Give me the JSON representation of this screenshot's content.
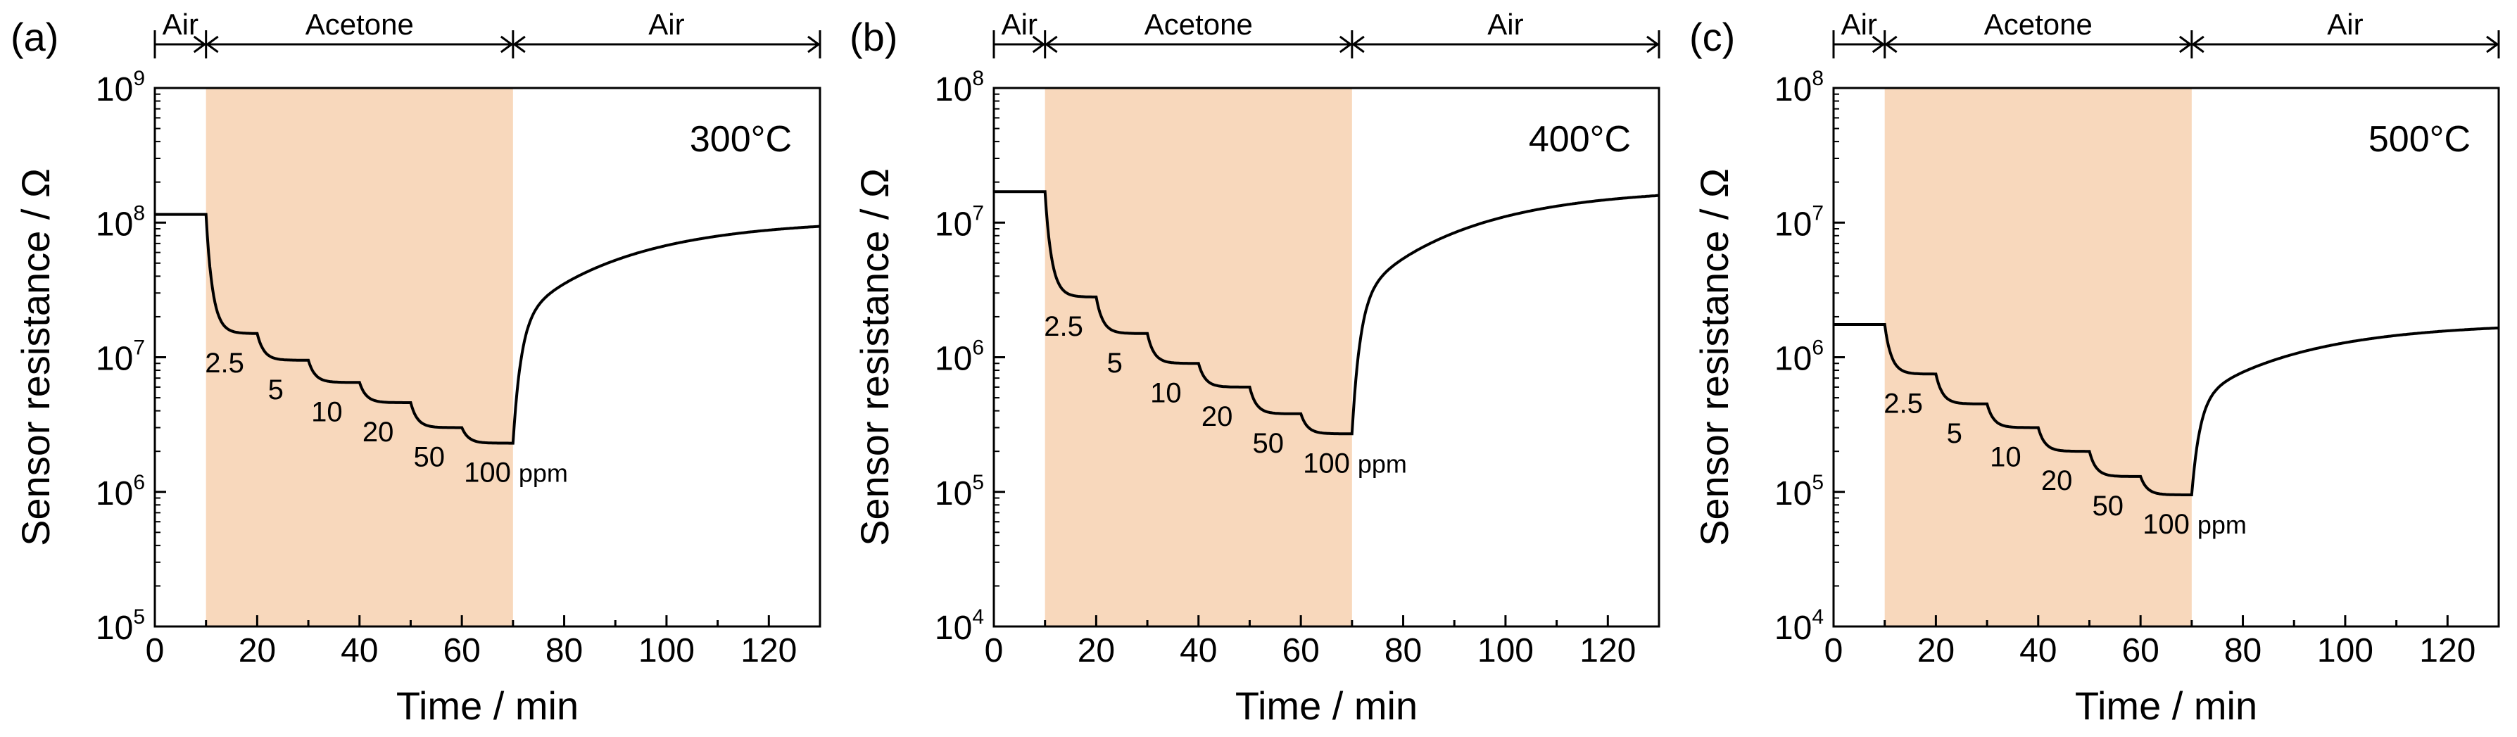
{
  "chart_data": [
    {
      "type": "line",
      "panel": "(a)",
      "temperature": "300°C",
      "xlabel": "Time / min",
      "ylabel": "Sensor resistance / Ω",
      "xlim": [
        0,
        130
      ],
      "xticks": [
        0,
        20,
        40,
        60,
        80,
        100,
        120
      ],
      "ylim_exp": [
        5,
        9
      ],
      "yticks": [
        {
          "base": "10",
          "exp": "5"
        },
        {
          "base": "10",
          "exp": "6"
        },
        {
          "base": "10",
          "exp": "7"
        },
        {
          "base": "10",
          "exp": "8"
        },
        {
          "base": "10",
          "exp": "9"
        }
      ],
      "phases": [
        {
          "label": "Air",
          "start": 0,
          "end": 10
        },
        {
          "label": "Acetone",
          "start": 10,
          "end": 70
        },
        {
          "label": "Air",
          "start": 70,
          "end": 130
        }
      ],
      "exposure_window": [
        10,
        70
      ],
      "baseline": 115000000.0,
      "steps": [
        {
          "label": "2.5",
          "start": 10,
          "end": 20,
          "value": 15000000.0
        },
        {
          "label": "5",
          "start": 20,
          "end": 30,
          "value": 9500000.0
        },
        {
          "label": "10",
          "start": 30,
          "end": 40,
          "value": 6500000.0
        },
        {
          "label": "20",
          "start": 40,
          "end": 50,
          "value": 4600000.0
        },
        {
          "label": "50",
          "start": 50,
          "end": 60,
          "value": 3000000.0
        },
        {
          "label": "100",
          "start": 60,
          "end": 70,
          "value": 2300000.0
        }
      ],
      "unit_label": "ppm",
      "recovery_end": 105000000.0
    },
    {
      "type": "line",
      "panel": "(b)",
      "temperature": "400°C",
      "xlabel": "Time / min",
      "ylabel": "Sensor resistance / Ω",
      "xlim": [
        0,
        130
      ],
      "xticks": [
        0,
        20,
        40,
        60,
        80,
        100,
        120
      ],
      "ylim_exp": [
        4,
        8
      ],
      "yticks": [
        {
          "base": "10",
          "exp": "4"
        },
        {
          "base": "10",
          "exp": "5"
        },
        {
          "base": "10",
          "exp": "6"
        },
        {
          "base": "10",
          "exp": "7"
        },
        {
          "base": "10",
          "exp": "8"
        }
      ],
      "phases": [
        {
          "label": "Air",
          "start": 0,
          "end": 10
        },
        {
          "label": "Acetone",
          "start": 10,
          "end": 70
        },
        {
          "label": "Air",
          "start": 70,
          "end": 130
        }
      ],
      "exposure_window": [
        10,
        70
      ],
      "baseline": 17000000.0,
      "steps": [
        {
          "label": "2.5",
          "start": 10,
          "end": 20,
          "value": 2800000.0
        },
        {
          "label": "5",
          "start": 20,
          "end": 30,
          "value": 1500000.0
        },
        {
          "label": "10",
          "start": 30,
          "end": 40,
          "value": 900000.0
        },
        {
          "label": "20",
          "start": 40,
          "end": 50,
          "value": 600000.0
        },
        {
          "label": "50",
          "start": 50,
          "end": 60,
          "value": 380000.0
        },
        {
          "label": "100",
          "start": 60,
          "end": 70,
          "value": 270000.0
        }
      ],
      "unit_label": "ppm",
      "recovery_end": 18000000.0
    },
    {
      "type": "line",
      "panel": "(c)",
      "temperature": "500°C",
      "xlabel": "Time / min",
      "ylabel": "Sensor resistance / Ω",
      "xlim": [
        0,
        130
      ],
      "xticks": [
        0,
        20,
        40,
        60,
        80,
        100,
        120
      ],
      "ylim_exp": [
        4,
        8
      ],
      "yticks": [
        {
          "base": "10",
          "exp": "4"
        },
        {
          "base": "10",
          "exp": "5"
        },
        {
          "base": "10",
          "exp": "6"
        },
        {
          "base": "10",
          "exp": "7"
        },
        {
          "base": "10",
          "exp": "8"
        }
      ],
      "phases": [
        {
          "label": "Air",
          "start": 0,
          "end": 10
        },
        {
          "label": "Acetone",
          "start": 10,
          "end": 70
        },
        {
          "label": "Air",
          "start": 70,
          "end": 130
        }
      ],
      "exposure_window": [
        10,
        70
      ],
      "baseline": 1750000.0,
      "steps": [
        {
          "label": "2.5",
          "start": 10,
          "end": 20,
          "value": 750000.0
        },
        {
          "label": "5",
          "start": 20,
          "end": 30,
          "value": 450000.0
        },
        {
          "label": "10",
          "start": 30,
          "end": 40,
          "value": 300000.0
        },
        {
          "label": "20",
          "start": 40,
          "end": 50,
          "value": 200000.0
        },
        {
          "label": "50",
          "start": 50,
          "end": 60,
          "value": 130000.0
        },
        {
          "label": "100",
          "start": 60,
          "end": 70,
          "value": 95000.0
        }
      ],
      "unit_label": "ppm",
      "recovery_end": 1800000.0
    }
  ],
  "colors": {
    "exposure_fill": "#f8d8bc",
    "line": "#000000"
  }
}
